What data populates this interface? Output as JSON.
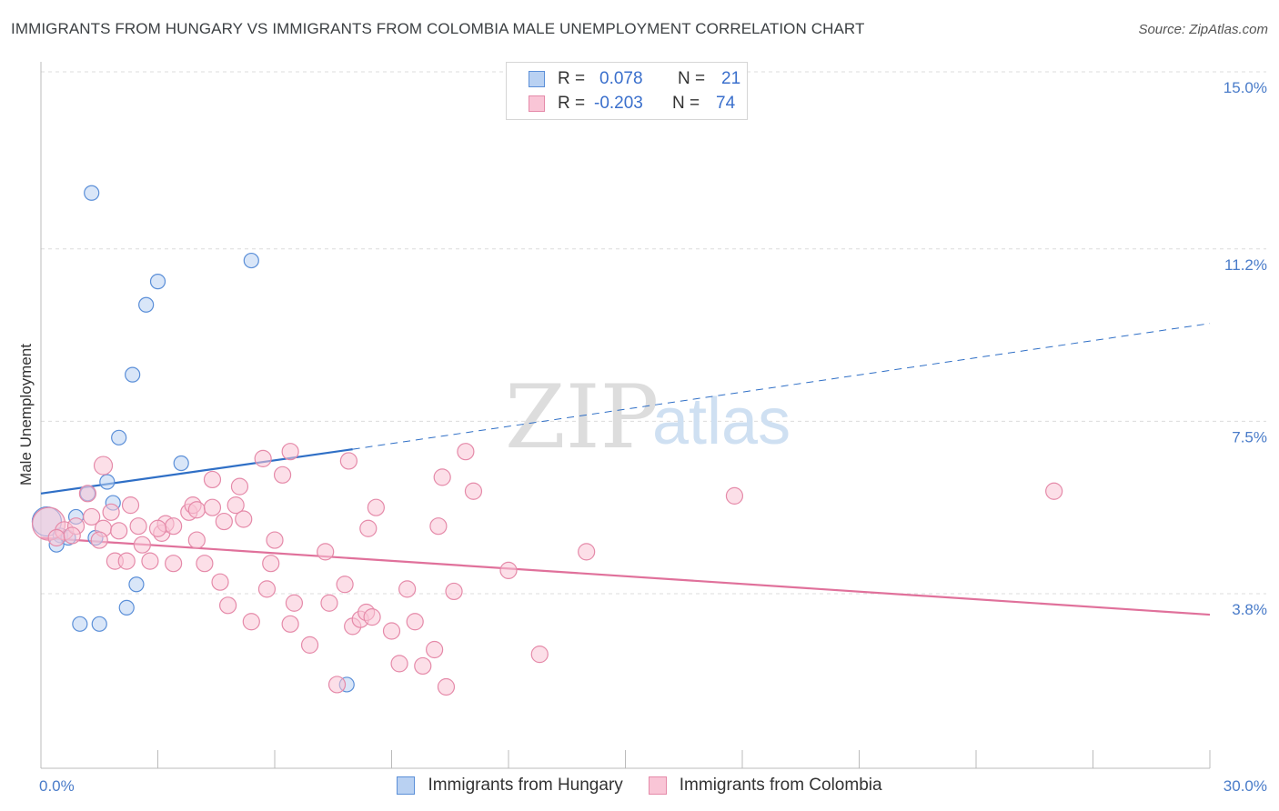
{
  "header": {
    "title": "IMMIGRANTS FROM HUNGARY VS IMMIGRANTS FROM COLOMBIA MALE UNEMPLOYMENT CORRELATION CHART",
    "source": "Source: ZipAtlas.com"
  },
  "watermark": {
    "zip": "ZIP",
    "atlas": "atlas"
  },
  "colors": {
    "blue_fill": "#b9d1f2",
    "blue_stroke": "#5b8fd8",
    "blue_line": "#2f6fc6",
    "pink_fill": "#f9c5d6",
    "pink_stroke": "#e58aa9",
    "pink_line": "#e0719b",
    "grid": "#dcdcdc",
    "axis_label": "#4a7cc9"
  },
  "legend": {
    "rows": [
      {
        "r_label": "R =",
        "r_value": "0.078",
        "n_label": "N =",
        "n_value": "21",
        "series": "blue"
      },
      {
        "r_label": "R =",
        "r_value": "-0.203",
        "n_label": "N =",
        "n_value": "74",
        "series": "pink"
      }
    ]
  },
  "chart_data": {
    "type": "scatter",
    "title": "IMMIGRANTS FROM HUNGARY VS IMMIGRANTS FROM COLOMBIA MALE UNEMPLOYMENT CORRELATION CHART",
    "xlabel": "",
    "ylabel": "Male Unemployment",
    "xlim": [
      0,
      30
    ],
    "ylim": [
      0,
      15.7
    ],
    "x_tick_labels": [
      {
        "value": 0,
        "label": "0.0%"
      },
      {
        "value": 30,
        "label": "30.0%"
      }
    ],
    "x_minor_ticks": [
      3,
      6,
      9,
      12,
      15,
      18,
      21,
      24,
      27,
      30
    ],
    "y_ticks": [
      {
        "value": 3.8,
        "label": "3.8%"
      },
      {
        "value": 7.5,
        "label": "7.5%"
      },
      {
        "value": 11.2,
        "label": "11.2%"
      },
      {
        "value": 15.0,
        "label": "15.0%"
      }
    ],
    "series": [
      {
        "name": "Immigrants from Hungary",
        "color": "blue",
        "trend": {
          "x": [
            0,
            8
          ],
          "y": [
            5.95,
            6.9
          ],
          "dashed_to": [
            30,
            9.6
          ]
        },
        "points": [
          {
            "x": 1.3,
            "y": 12.4,
            "s": 8
          },
          {
            "x": 3.0,
            "y": 10.5,
            "s": 8
          },
          {
            "x": 2.7,
            "y": 10.0,
            "s": 8
          },
          {
            "x": 5.4,
            "y": 10.95,
            "s": 8
          },
          {
            "x": 2.35,
            "y": 8.5,
            "s": 8
          },
          {
            "x": 2.0,
            "y": 7.15,
            "s": 8
          },
          {
            "x": 3.6,
            "y": 6.6,
            "s": 8
          },
          {
            "x": 1.7,
            "y": 6.2,
            "s": 8
          },
          {
            "x": 1.2,
            "y": 5.95,
            "s": 8
          },
          {
            "x": 1.85,
            "y": 5.75,
            "s": 8
          },
          {
            "x": 0.9,
            "y": 5.45,
            "s": 8
          },
          {
            "x": 0.15,
            "y": 5.35,
            "s": 16
          },
          {
            "x": 0.5,
            "y": 5.05,
            "s": 8
          },
          {
            "x": 0.7,
            "y": 5.0,
            "s": 8
          },
          {
            "x": 1.4,
            "y": 5.0,
            "s": 8
          },
          {
            "x": 0.4,
            "y": 4.85,
            "s": 8
          },
          {
            "x": 2.45,
            "y": 4.0,
            "s": 8
          },
          {
            "x": 2.2,
            "y": 3.5,
            "s": 8
          },
          {
            "x": 1.0,
            "y": 3.15,
            "s": 8
          },
          {
            "x": 1.5,
            "y": 3.15,
            "s": 8
          },
          {
            "x": 7.85,
            "y": 1.85,
            "s": 8
          }
        ]
      },
      {
        "name": "Immigrants from Colombia",
        "color": "pink",
        "trend": {
          "x": [
            0,
            30
          ],
          "y": [
            5.0,
            3.35
          ]
        },
        "points": [
          {
            "x": 0.2,
            "y": 5.3,
            "s": 18
          },
          {
            "x": 0.6,
            "y": 5.15,
            "s": 10
          },
          {
            "x": 1.6,
            "y": 6.55,
            "s": 10
          },
          {
            "x": 1.2,
            "y": 5.95,
            "s": 9
          },
          {
            "x": 1.8,
            "y": 5.55,
            "s": 9
          },
          {
            "x": 2.3,
            "y": 5.7,
            "s": 9
          },
          {
            "x": 1.3,
            "y": 5.45,
            "s": 9
          },
          {
            "x": 0.9,
            "y": 5.25,
            "s": 9
          },
          {
            "x": 1.6,
            "y": 5.2,
            "s": 9
          },
          {
            "x": 2.0,
            "y": 5.15,
            "s": 9
          },
          {
            "x": 2.5,
            "y": 5.25,
            "s": 9
          },
          {
            "x": 3.1,
            "y": 5.1,
            "s": 9
          },
          {
            "x": 3.2,
            "y": 5.3,
            "s": 9
          },
          {
            "x": 3.4,
            "y": 5.25,
            "s": 9
          },
          {
            "x": 3.8,
            "y": 5.55,
            "s": 9
          },
          {
            "x": 3.9,
            "y": 5.7,
            "s": 9
          },
          {
            "x": 4.0,
            "y": 5.6,
            "s": 9
          },
          {
            "x": 4.4,
            "y": 5.65,
            "s": 9
          },
          {
            "x": 4.7,
            "y": 5.35,
            "s": 9
          },
          {
            "x": 5.0,
            "y": 5.7,
            "s": 9
          },
          {
            "x": 5.2,
            "y": 5.4,
            "s": 9
          },
          {
            "x": 4.4,
            "y": 6.25,
            "s": 9
          },
          {
            "x": 5.1,
            "y": 6.1,
            "s": 9
          },
          {
            "x": 5.7,
            "y": 6.7,
            "s": 9
          },
          {
            "x": 6.2,
            "y": 6.35,
            "s": 9
          },
          {
            "x": 6.4,
            "y": 6.85,
            "s": 9
          },
          {
            "x": 7.9,
            "y": 6.65,
            "s": 9
          },
          {
            "x": 1.5,
            "y": 4.95,
            "s": 9
          },
          {
            "x": 1.9,
            "y": 4.5,
            "s": 9
          },
          {
            "x": 2.2,
            "y": 4.5,
            "s": 9
          },
          {
            "x": 2.6,
            "y": 4.85,
            "s": 9
          },
          {
            "x": 2.8,
            "y": 4.5,
            "s": 9
          },
          {
            "x": 3.4,
            "y": 4.45,
            "s": 9
          },
          {
            "x": 4.0,
            "y": 4.95,
            "s": 9
          },
          {
            "x": 4.2,
            "y": 4.45,
            "s": 9
          },
          {
            "x": 4.6,
            "y": 4.05,
            "s": 9
          },
          {
            "x": 6.0,
            "y": 4.95,
            "s": 9
          },
          {
            "x": 5.9,
            "y": 4.45,
            "s": 9
          },
          {
            "x": 7.3,
            "y": 4.7,
            "s": 9
          },
          {
            "x": 8.6,
            "y": 5.65,
            "s": 9
          },
          {
            "x": 8.4,
            "y": 5.2,
            "s": 9
          },
          {
            "x": 10.2,
            "y": 5.25,
            "s": 9
          },
          {
            "x": 10.3,
            "y": 6.3,
            "s": 9
          },
          {
            "x": 10.9,
            "y": 6.85,
            "s": 9
          },
          {
            "x": 11.1,
            "y": 6.0,
            "s": 9
          },
          {
            "x": 4.8,
            "y": 3.55,
            "s": 9
          },
          {
            "x": 5.4,
            "y": 3.2,
            "s": 9
          },
          {
            "x": 5.8,
            "y": 3.9,
            "s": 9
          },
          {
            "x": 6.5,
            "y": 3.6,
            "s": 9
          },
          {
            "x": 6.4,
            "y": 3.15,
            "s": 9
          },
          {
            "x": 7.4,
            "y": 3.6,
            "s": 9
          },
          {
            "x": 7.8,
            "y": 4.0,
            "s": 9
          },
          {
            "x": 6.9,
            "y": 2.7,
            "s": 9
          },
          {
            "x": 8.0,
            "y": 3.1,
            "s": 9
          },
          {
            "x": 8.2,
            "y": 3.25,
            "s": 9
          },
          {
            "x": 8.35,
            "y": 3.4,
            "s": 9
          },
          {
            "x": 8.5,
            "y": 3.3,
            "s": 9
          },
          {
            "x": 9.0,
            "y": 3.0,
            "s": 9
          },
          {
            "x": 9.4,
            "y": 3.9,
            "s": 9
          },
          {
            "x": 9.6,
            "y": 3.2,
            "s": 9
          },
          {
            "x": 10.6,
            "y": 3.85,
            "s": 9
          },
          {
            "x": 9.2,
            "y": 2.3,
            "s": 9
          },
          {
            "x": 9.8,
            "y": 2.25,
            "s": 9
          },
          {
            "x": 10.1,
            "y": 2.6,
            "s": 9
          },
          {
            "x": 10.4,
            "y": 1.8,
            "s": 9
          },
          {
            "x": 7.6,
            "y": 1.85,
            "s": 9
          },
          {
            "x": 12.0,
            "y": 4.3,
            "s": 9
          },
          {
            "x": 14.0,
            "y": 4.7,
            "s": 9
          },
          {
            "x": 12.8,
            "y": 2.5,
            "s": 9
          },
          {
            "x": 17.8,
            "y": 5.9,
            "s": 9
          },
          {
            "x": 26.0,
            "y": 6.0,
            "s": 9
          },
          {
            "x": 0.4,
            "y": 5.0,
            "s": 9
          },
          {
            "x": 0.8,
            "y": 5.05,
            "s": 9
          },
          {
            "x": 3.0,
            "y": 5.2,
            "s": 9
          }
        ]
      }
    ]
  },
  "bottom_legend": {
    "items": [
      {
        "label": "Immigrants from Hungary",
        "series": "blue"
      },
      {
        "label": "Immigrants from Colombia",
        "series": "pink"
      }
    ]
  }
}
